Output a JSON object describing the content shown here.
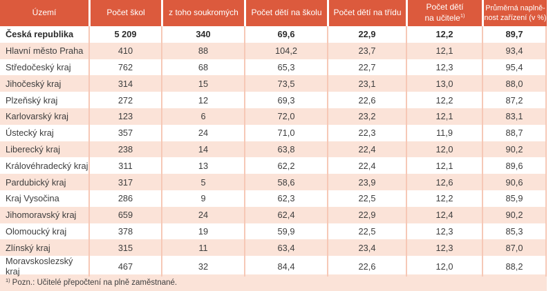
{
  "table": {
    "header": {
      "col1": "Území",
      "col2": "Počet škol",
      "col3": "z toho soukromých",
      "col4": "Počet dětí na školu",
      "col5": "Počet dětí na třídu",
      "col6_line1": "Počet dětí",
      "col6_line2": "na učitele",
      "col6_sup": "1)",
      "col7_line1": "Průměrná naplně-",
      "col7_line2": "nost zařízení (v %)"
    },
    "rows": [
      {
        "name": "Česká republika",
        "bold": true,
        "values": [
          "5 209",
          "340",
          "69,6",
          "22,9",
          "12,2",
          "89,7"
        ]
      },
      {
        "name": "Hlavní město Praha",
        "bold": false,
        "values": [
          "410",
          "88",
          "104,2",
          "23,7",
          "12,1",
          "93,4"
        ]
      },
      {
        "name": "Středočeský kraj",
        "bold": false,
        "values": [
          "762",
          "68",
          "65,3",
          "22,7",
          "12,3",
          "95,4"
        ]
      },
      {
        "name": "Jihočeský kraj",
        "bold": false,
        "values": [
          "314",
          "15",
          "73,5",
          "23,1",
          "13,0",
          "88,0"
        ]
      },
      {
        "name": "Plzeňský kraj",
        "bold": false,
        "values": [
          "272",
          "12",
          "69,3",
          "22,6",
          "12,2",
          "87,2"
        ]
      },
      {
        "name": "Karlovarský kraj",
        "bold": false,
        "values": [
          "123",
          "6",
          "72,0",
          "23,2",
          "12,1",
          "83,1"
        ]
      },
      {
        "name": "Ústecký kraj",
        "bold": false,
        "values": [
          "357",
          "24",
          "71,0",
          "22,3",
          "11,9",
          "88,7"
        ]
      },
      {
        "name": "Liberecký kraj",
        "bold": false,
        "values": [
          "238",
          "14",
          "63,8",
          "22,4",
          "12,0",
          "90,2"
        ]
      },
      {
        "name": "Královéhradecký kraj",
        "bold": false,
        "values": [
          "311",
          "13",
          "62,2",
          "22,4",
          "12,1",
          "89,6"
        ]
      },
      {
        "name": "Pardubický kraj",
        "bold": false,
        "values": [
          "317",
          "5",
          "58,6",
          "23,9",
          "12,6",
          "90,6"
        ]
      },
      {
        "name": "Kraj Vysočina",
        "bold": false,
        "values": [
          "286",
          "9",
          "62,3",
          "22,5",
          "12,2",
          "85,9"
        ]
      },
      {
        "name": "Jihomoravský kraj",
        "bold": false,
        "values": [
          "659",
          "24",
          "62,4",
          "22,9",
          "12,4",
          "90,2"
        ]
      },
      {
        "name": "Olomoucký kraj",
        "bold": false,
        "values": [
          "378",
          "19",
          "59,9",
          "22,5",
          "12,3",
          "85,3"
        ]
      },
      {
        "name": "Zlínský kraj",
        "bold": false,
        "values": [
          "315",
          "11",
          "63,4",
          "23,4",
          "12,3",
          "87,0"
        ]
      },
      {
        "name": "Moravskoslezský kraj",
        "bold": false,
        "values": [
          "467",
          "32",
          "84,4",
          "22,6",
          "12,0",
          "88,2"
        ]
      }
    ]
  },
  "footnote": {
    "sup": "1)",
    "text": "Pozn.: Učitelé přepočtení na plně zaměstnané."
  },
  "colors": {
    "header_bg": "#DC5A3D",
    "header_text": "#FFFFFF",
    "row_alt_bg": "#FBE3D8",
    "grid_line": "#F6C8B6",
    "body_text": "#3D3D3D"
  }
}
